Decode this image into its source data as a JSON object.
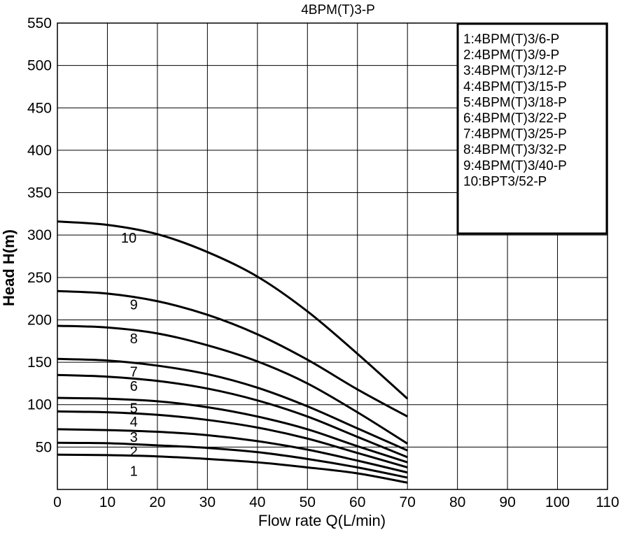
{
  "chart_data": {
    "type": "line",
    "title": "4BPM(T)3-P",
    "xlabel": "Flow rate Q(L/min)",
    "ylabel": "Head H(m)",
    "xlim": [
      0,
      110
    ],
    "ylim": [
      0,
      550
    ],
    "xticks": [
      "0",
      "10",
      "20",
      "30",
      "40",
      "50",
      "60",
      "70",
      "80",
      "90",
      "100",
      "110"
    ],
    "yticks": [
      "50",
      "100",
      "150",
      "200",
      "250",
      "300",
      "350",
      "400",
      "450",
      "500",
      "550"
    ],
    "grid": true,
    "legend_position": "top-right",
    "legend": [
      "1:4BPM(T)3/6-P",
      "2:4BPM(T)3/9-P",
      "3:4BPM(T)3/12-P",
      "4:4BPM(T)3/15-P",
      "5:4BPM(T)3/18-P",
      "6:4BPM(T)3/22-P",
      "7:4BPM(T)3/25-P",
      "8:4BPM(T)3/32-P",
      "9:4BPM(T)3/40-P",
      "10:BPT3/52-P"
    ],
    "series": [
      {
        "name": "1",
        "x": [
          0,
          10,
          20,
          30,
          40,
          50,
          60,
          70
        ],
        "y": [
          41,
          40.5,
          39,
          36,
          32,
          26,
          19,
          8
        ]
      },
      {
        "name": "2",
        "x": [
          0,
          10,
          20,
          30,
          40,
          50,
          60,
          70
        ],
        "y": [
          55,
          54.5,
          52,
          49,
          44,
          36,
          26,
          14
        ]
      },
      {
        "name": "3",
        "x": [
          0,
          10,
          20,
          30,
          40,
          50,
          60,
          70
        ],
        "y": [
          71,
          70,
          68,
          64,
          57,
          47,
          34,
          20
        ]
      },
      {
        "name": "4",
        "x": [
          0,
          10,
          20,
          30,
          40,
          50,
          60,
          70
        ],
        "y": [
          92,
          91,
          88,
          82,
          73,
          60,
          43,
          26
        ]
      },
      {
        "name": "5",
        "x": [
          0,
          10,
          20,
          30,
          40,
          50,
          60,
          70
        ],
        "y": [
          108,
          107,
          104,
          97,
          86,
          71,
          51,
          32
        ]
      },
      {
        "name": "6",
        "x": [
          0,
          10,
          20,
          30,
          40,
          50,
          60,
          70
        ],
        "y": [
          135,
          133,
          128,
          119,
          105,
          86,
          62,
          38
        ]
      },
      {
        "name": "7",
        "x": [
          0,
          10,
          20,
          30,
          40,
          50,
          60,
          70
        ],
        "y": [
          154,
          152,
          146,
          136,
          120,
          98,
          72,
          46
        ]
      },
      {
        "name": "8",
        "x": [
          0,
          10,
          20,
          30,
          40,
          50,
          60,
          70
        ],
        "y": [
          193,
          191,
          184,
          170,
          151,
          125,
          91,
          54
        ]
      },
      {
        "name": "9",
        "x": [
          0,
          10,
          20,
          30,
          40,
          50,
          60,
          70
        ],
        "y": [
          234,
          231,
          222,
          206,
          183,
          153,
          118,
          86
        ]
      },
      {
        "name": "10",
        "x": [
          0,
          10,
          20,
          30,
          40,
          50,
          60,
          70
        ],
        "y": [
          316,
          312,
          301,
          280,
          251,
          210,
          160,
          107
        ]
      }
    ],
    "curve_label_positions": [
      {
        "label": "1",
        "x": 15,
        "y": 22
      },
      {
        "label": "2",
        "x": 15,
        "y": 45
      },
      {
        "label": "3",
        "x": 15,
        "y": 62
      },
      {
        "label": "4",
        "x": 15,
        "y": 80
      },
      {
        "label": "5",
        "x": 15,
        "y": 96
      },
      {
        "label": "6",
        "x": 15,
        "y": 122
      },
      {
        "label": "7",
        "x": 15,
        "y": 139
      },
      {
        "label": "8",
        "x": 15,
        "y": 178
      },
      {
        "label": "9",
        "x": 15,
        "y": 218
      },
      {
        "label": "10",
        "x": 14,
        "y": 297
      }
    ]
  }
}
